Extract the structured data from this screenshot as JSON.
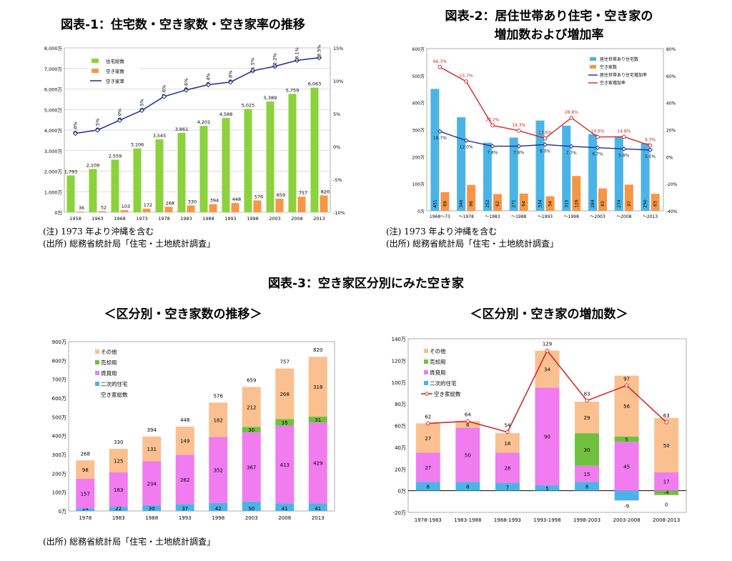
{
  "titles": {
    "c1": "図表-1：住宅数・空き家数・空き家率の推移",
    "c2_line1": "図表-2：居住世帯あり住宅・空き家の",
    "c2_line2": "増加数および増加率",
    "fig3": "図表-3：空き家区分別にみた空き家",
    "c3": "＜区分別・空き家数の推移＞",
    "c4": "＜区分別・空き家の増加数＞"
  },
  "notes": {
    "c1_note": "(注) 1973 年より沖縄を含む",
    "c1_source": "(出所) 総務省統計局「住宅・土地統計調査」",
    "c2_note": "(注) 1973 年より沖縄を含む",
    "c2_source": "(出所) 総務省統計局「住宅・土地統計調査」",
    "c3_source": "(出所) 総務省統計局「住宅・土地統計調査」"
  },
  "chart_data": [
    {
      "type": "bar",
      "id": "c1",
      "categories": [
        "1958",
        "1963",
        "1968",
        "1973",
        "1978",
        "1983",
        "1988",
        "1993",
        "1998",
        "2003",
        "2008",
        "2013"
      ],
      "series": [
        {
          "name": "住宅総数",
          "kind": "bar",
          "color": "#8cd23c",
          "values": [
            1793,
            2109,
            2559,
            3106,
            3545,
            3861,
            4201,
            4588,
            5025,
            5389,
            5759,
            6063
          ],
          "labels": [
            "1,793",
            "2,109",
            "2,559",
            "3,106",
            "3,545",
            "3,861",
            "4,201",
            "4,588",
            "5,025",
            "5,389",
            "5,759",
            "6,063"
          ]
        },
        {
          "name": "空き家数",
          "kind": "bar",
          "color": "#f79646",
          "values": [
            36,
            52,
            103,
            172,
            268,
            330,
            394,
            448,
            576,
            659,
            757,
            820
          ],
          "labels": [
            "36",
            "52",
            "103",
            "172",
            "268",
            "330",
            "394",
            "448",
            "576",
            "659",
            "757",
            "820"
          ]
        },
        {
          "name": "空き家率",
          "kind": "line",
          "axis": "right",
          "color": "#1f2e8c",
          "values": [
            2.0,
            2.5,
            4.0,
            5.5,
            7.6,
            8.6,
            9.4,
            9.8,
            11.5,
            12.2,
            13.1,
            13.5
          ],
          "labels": [
            "2.0%",
            "2.5%",
            "4.0%",
            "5.5%",
            "7.6%",
            "8.6%",
            "9.4%",
            "9.8%",
            "11.5%",
            "12.2%",
            "13.1%",
            "13.5%"
          ]
        }
      ],
      "ylim": [
        0,
        8000
      ],
      "yticks": [
        "0万",
        "1,000万",
        "2,000万",
        "3,000万",
        "4,000万",
        "5,000万",
        "6,000万",
        "7,000万",
        "8,000万"
      ],
      "y2lim": [
        -10,
        15
      ],
      "y2ticks": [
        "-10%",
        "-5%",
        "0%",
        "5%",
        "10%",
        "15%"
      ],
      "legend": "top-left",
      "grid": true
    },
    {
      "type": "bar",
      "id": "c2",
      "categories": [
        "1968〜73",
        "〜1978",
        "〜1983",
        "〜1988",
        "〜1993",
        "〜1998",
        "〜2003",
        "〜2008",
        "〜2013"
      ],
      "series": [
        {
          "name": "居住世帯あり住宅数",
          "kind": "bar",
          "color": "#4bb4e6",
          "values": [
            451,
            346,
            252,
            271,
            334,
            315,
            284,
            274,
            250
          ],
          "labels": [
            "451",
            "346",
            "252",
            "271",
            "334",
            "315",
            "284",
            "274",
            "250"
          ]
        },
        {
          "name": "空き家数",
          "kind": "bar",
          "color": "#f79646",
          "values": [
            69,
            96,
            62,
            64,
            54,
            129,
            83,
            97,
            63
          ],
          "labels": [
            "69",
            "96",
            "62",
            "64",
            "54",
            "129",
            "83",
            "97",
            "63"
          ]
        },
        {
          "name": "居住世帯あり住宅増加率",
          "kind": "line",
          "axis": "right",
          "color": "#1f2e8c",
          "values": [
            18.7,
            12.0,
            7.8,
            7.8,
            9.0,
            7.7,
            6.7,
            5.8,
            5.0
          ],
          "labels": [
            "18.7%",
            "12.0%",
            "7.8%",
            "7.8%",
            "9.0%",
            "7.7%",
            "6.7%",
            "5.8%",
            "5.0%"
          ]
        },
        {
          "name": "空き家増加率",
          "kind": "line",
          "axis": "right",
          "color": "#d62828",
          "values": [
            66.3,
            55.7,
            23.2,
            19.3,
            13.6,
            28.8,
            14.6,
            14.8,
            8.3
          ],
          "labels": [
            "66.3%",
            "55.7%",
            "23.2%",
            "19.3%",
            "13.6%",
            "28.8%",
            "14.6%",
            "14.8%",
            "8.3%"
          ]
        }
      ],
      "ylim": [
        0,
        600
      ],
      "yticks": [
        "0万",
        "100万",
        "200万",
        "300万",
        "400万",
        "500万",
        "600万"
      ],
      "y2lim": [
        -40,
        80
      ],
      "y2ticks": [
        "-40%",
        "-20%",
        "0%",
        "20%",
        "40%",
        "60%",
        "80%"
      ],
      "legend": "top-right",
      "grid": false
    },
    {
      "type": "bar",
      "id": "c3",
      "stacked": true,
      "categories": [
        "1978",
        "1983",
        "1988",
        "1993",
        "1998",
        "2003",
        "2008",
        "2013"
      ],
      "series": [
        {
          "name": "二次的住宅",
          "color": "#4bb4e6",
          "values": [
            14,
            22,
            30,
            37,
            42,
            50,
            41,
            41
          ]
        },
        {
          "name": "賃貸用",
          "color": "#f07cf0",
          "values": [
            157,
            183,
            234,
            262,
            352,
            367,
            413,
            429
          ]
        },
        {
          "name": "売却用",
          "color": "#70c040",
          "values": [
            0,
            0,
            0,
            0,
            0,
            30,
            35,
            31
          ],
          "labels": [
            "",
            "",
            "",
            "",
            "",
            "30",
            "35",
            "31"
          ]
        },
        {
          "name": "その他",
          "color": "#fac090",
          "values": [
            98,
            125,
            131,
            149,
            182,
            212,
            268,
            318
          ]
        }
      ],
      "totals_name": "空き家総数",
      "totals": [
        268,
        330,
        394,
        448,
        576,
        659,
        757,
        820
      ],
      "ylim": [
        0,
        900
      ],
      "yticks": [
        "0万",
        "100万",
        "200万",
        "300万",
        "400万",
        "500万",
        "600万",
        "700万",
        "800万",
        "900万"
      ],
      "legend": "top-left",
      "grid": false
    },
    {
      "type": "bar",
      "id": "c4",
      "stacked": true,
      "categories": [
        "1978-1983",
        "1983-1988",
        "1988-1993",
        "1993-1998",
        "1998-2003",
        "2003-2008",
        "2008-2013"
      ],
      "series": [
        {
          "name": "二次的住宅",
          "color": "#4bb4e6",
          "values": [
            8,
            8,
            7,
            5,
            8,
            -9,
            0
          ],
          "labels": [
            "8",
            "8",
            "7",
            "5",
            "8",
            "-9",
            "0"
          ]
        },
        {
          "name": "賃貸用",
          "color": "#f07cf0",
          "values": [
            27,
            50,
            28,
            90,
            15,
            45,
            17
          ],
          "labels": [
            "27",
            "50",
            "28",
            "90",
            "15",
            "45",
            "17"
          ]
        },
        {
          "name": "売却用",
          "color": "#70c040",
          "values": [
            0,
            0,
            0,
            0,
            30,
            5,
            -4
          ],
          "labels": [
            "",
            "",
            "",
            "",
            "30",
            "5",
            "-4"
          ]
        },
        {
          "name": "その他",
          "color": "#fac090",
          "values": [
            27,
            6,
            18,
            34,
            29,
            56,
            50
          ],
          "labels": [
            "27",
            "6",
            "18",
            "34",
            "29",
            "56",
            "50"
          ]
        }
      ],
      "totals_name": "空き家総数",
      "totals": [
        62,
        64,
        54,
        129,
        83,
        97,
        63
      ],
      "ylim": [
        -20,
        140
      ],
      "yticks": [
        "-20万",
        "0万",
        "20万",
        "40万",
        "60万",
        "80万",
        "100万",
        "120万",
        "140万"
      ],
      "legend": "top-left",
      "grid": false
    }
  ]
}
